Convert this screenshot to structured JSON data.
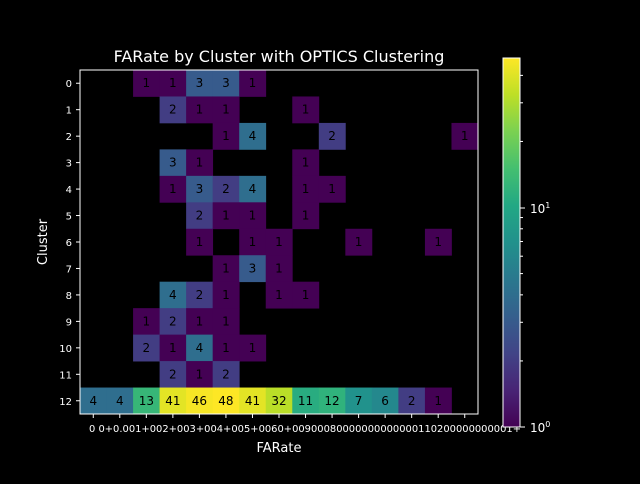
{
  "chart_data": {
    "type": "heatmap",
    "title": "FARate by Cluster with OPTICS Clustering",
    "xlabel": "FARate",
    "ylabel": "Cluster",
    "x_tick_labels": [
      "0",
      "0+0.001",
      "+0.002",
      "+0.003",
      "+0.004",
      "+0.005",
      "+0.006",
      "+0.007",
      "+0.008",
      "+0.009",
      "+0.010",
      "+0.011",
      "+0.012",
      "+0.013",
      "+0.014"
    ],
    "x_tick_text": "0      0+0.001+002+003+004+005+0060+00900080000000000000110200000000001+",
    "y_categories": [
      "0",
      "1",
      "2",
      "3",
      "4",
      "5",
      "6",
      "7",
      "8",
      "9",
      "10",
      "11",
      "12"
    ],
    "scale": "log",
    "colorbar": {
      "ticks": [
        "10^0",
        "10^1"
      ],
      "vmin": 1,
      "vmax": 48,
      "colormap": "viridis"
    },
    "rows": [
      [
        0,
        0,
        1,
        1,
        3,
        3,
        1,
        0,
        0,
        0,
        0,
        0,
        0,
        0,
        0
      ],
      [
        0,
        0,
        0,
        2,
        1,
        1,
        0,
        0,
        1,
        0,
        0,
        0,
        0,
        0,
        0
      ],
      [
        0,
        0,
        0,
        0,
        0,
        1,
        4,
        0,
        0,
        2,
        0,
        0,
        0,
        0,
        1
      ],
      [
        0,
        0,
        0,
        3,
        1,
        0,
        0,
        0,
        1,
        0,
        0,
        0,
        0,
        0,
        0
      ],
      [
        0,
        0,
        0,
        1,
        3,
        2,
        4,
        0,
        1,
        1,
        0,
        0,
        0,
        0,
        0
      ],
      [
        0,
        0,
        0,
        0,
        2,
        1,
        1,
        0,
        1,
        0,
        0,
        0,
        0,
        0,
        0
      ],
      [
        0,
        0,
        0,
        0,
        1,
        0,
        1,
        1,
        0,
        0,
        1,
        0,
        0,
        1,
        0
      ],
      [
        0,
        0,
        0,
        0,
        0,
        1,
        3,
        1,
        0,
        0,
        0,
        0,
        0,
        0,
        0
      ],
      [
        0,
        0,
        0,
        4,
        2,
        1,
        0,
        1,
        1,
        0,
        0,
        0,
        0,
        0,
        0
      ],
      [
        0,
        0,
        1,
        2,
        1,
        1,
        0,
        0,
        0,
        0,
        0,
        0,
        0,
        0,
        0
      ],
      [
        0,
        0,
        2,
        1,
        4,
        1,
        1,
        0,
        0,
        0,
        0,
        0,
        0,
        0,
        0
      ],
      [
        0,
        0,
        0,
        2,
        1,
        2,
        0,
        0,
        0,
        0,
        0,
        0,
        0,
        0,
        0
      ],
      [
        4,
        4,
        13,
        41,
        46,
        48,
        41,
        32,
        11,
        12,
        7,
        6,
        2,
        1,
        0
      ]
    ]
  }
}
